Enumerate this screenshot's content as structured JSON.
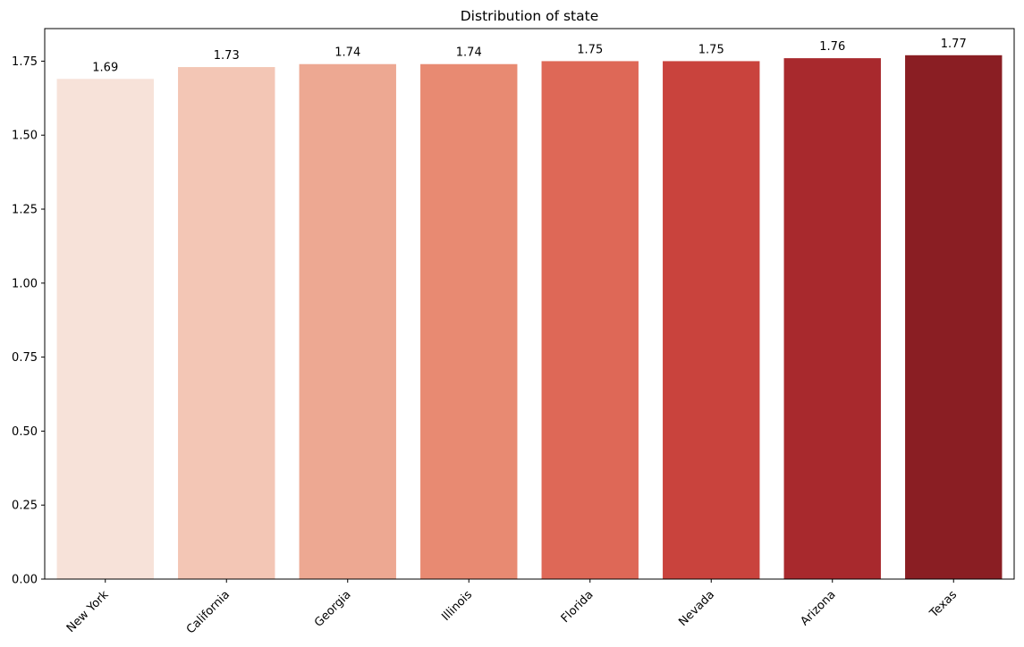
{
  "chart_data": {
    "type": "bar",
    "title": "Distribution of state",
    "xlabel": "",
    "ylabel": "",
    "categories": [
      "New York",
      "California",
      "Georgia",
      "Illinois",
      "Florida",
      "Nevada",
      "Arizona",
      "Texas"
    ],
    "values": [
      1.69,
      1.73,
      1.74,
      1.74,
      1.75,
      1.75,
      1.76,
      1.77
    ],
    "data_labels": [
      "1.69",
      "1.73",
      "1.74",
      "1.74",
      "1.75",
      "1.75",
      "1.76",
      "1.77"
    ],
    "colors": [
      "#f7e2d9",
      "#f3c6b5",
      "#eda892",
      "#e88a72",
      "#de6857",
      "#c9433d",
      "#a8292d",
      "#8a1e23"
    ],
    "ylim": [
      0,
      1.86
    ],
    "yticks": [
      0.0,
      0.25,
      0.5,
      0.75,
      1.0,
      1.25,
      1.5,
      1.75
    ],
    "ytick_labels": [
      "0.00",
      "0.25",
      "0.50",
      "0.75",
      "1.00",
      "1.25",
      "1.50",
      "1.75"
    ],
    "grid": false,
    "xtick_rotation_deg": 45
  }
}
